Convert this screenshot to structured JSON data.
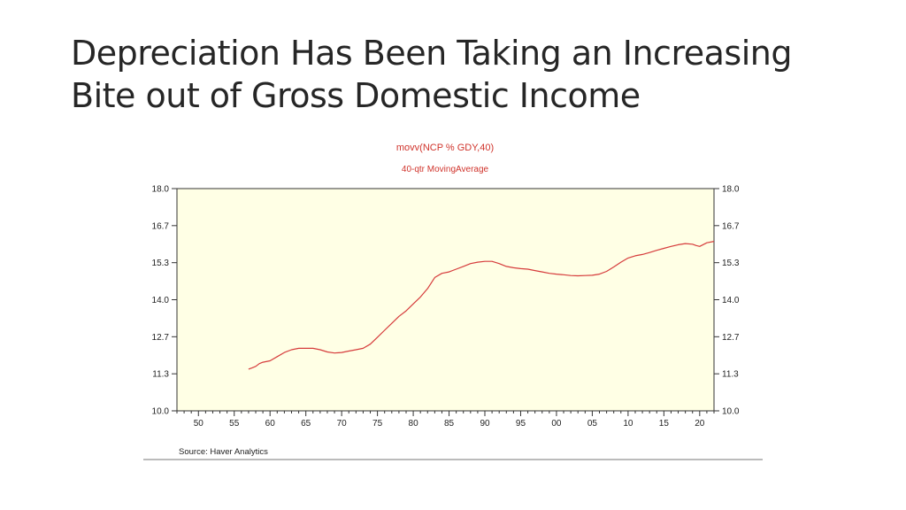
{
  "slide": {
    "title_line1": "Depreciation Has Been Taking an Increasing",
    "title_line2": "Bite out of Gross Domestic Income"
  },
  "colors": {
    "plot_background": "#ffffe5",
    "series_line": "#d63c3c",
    "chart_title": "#d0342c"
  },
  "chart_data": {
    "type": "line",
    "title": "movv(NCP % GDY,40)",
    "subtitle": "40-qtr MovingAverage",
    "source": "Source:  Haver Analytics",
    "ylim": [
      10.0,
      18.0
    ],
    "y_ticks": [
      "18.0",
      "16.7",
      "15.3",
      "14.0",
      "12.7",
      "11.3",
      "10.0"
    ],
    "y_tick_values": [
      18.0,
      16.667,
      15.333,
      14.0,
      12.667,
      11.333,
      10.0
    ],
    "xlim": [
      1947,
      2022
    ],
    "x_ticks": [
      "50",
      "55",
      "60",
      "65",
      "70",
      "75",
      "80",
      "85",
      "90",
      "95",
      "00",
      "05",
      "10",
      "15",
      "20"
    ],
    "x_tick_values": [
      1950,
      1955,
      1960,
      1965,
      1970,
      1975,
      1980,
      1985,
      1990,
      1995,
      2000,
      2005,
      2010,
      2015,
      2020
    ],
    "grid": false,
    "series": [
      {
        "x": [
          1957.0,
          1957.5,
          1958.0,
          1958.5,
          1959.0,
          1960.0,
          1961.0,
          1962.0,
          1963.0,
          1964.0,
          1965.0,
          1966.0,
          1967.0,
          1968.0,
          1969.0,
          1970.0,
          1971.0,
          1972.0,
          1973.0,
          1974.0,
          1975.0,
          1976.0,
          1977.0,
          1978.0,
          1979.0,
          1980.0,
          1981.0,
          1982.0,
          1983.0,
          1984.0,
          1985.0,
          1986.0,
          1987.0,
          1988.0,
          1989.0,
          1990.0,
          1991.0,
          1992.0,
          1993.0,
          1994.0,
          1995.0,
          1996.0,
          1997.0,
          1998.0,
          1999.0,
          2000.0,
          2001.0,
          2002.0,
          2003.0,
          2004.0,
          2005.0,
          2006.0,
          2007.0,
          2008.0,
          2009.0,
          2010.0,
          2011.0,
          2012.0,
          2013.0,
          2014.0,
          2015.0,
          2016.0,
          2017.0,
          2018.0,
          2019.0,
          2019.5,
          2020.0,
          2021.0,
          2022.0
        ],
        "values": [
          11.5,
          11.55,
          11.6,
          11.7,
          11.75,
          11.8,
          11.95,
          12.1,
          12.2,
          12.25,
          12.25,
          12.25,
          12.2,
          12.12,
          12.08,
          12.1,
          12.15,
          12.2,
          12.25,
          12.4,
          12.65,
          12.9,
          13.15,
          13.4,
          13.6,
          13.85,
          14.1,
          14.4,
          14.8,
          14.95,
          15.0,
          15.1,
          15.2,
          15.3,
          15.35,
          15.38,
          15.38,
          15.3,
          15.2,
          15.15,
          15.12,
          15.1,
          15.05,
          15.0,
          14.95,
          14.92,
          14.9,
          14.87,
          14.86,
          14.87,
          14.88,
          14.92,
          15.02,
          15.18,
          15.35,
          15.5,
          15.58,
          15.63,
          15.7,
          15.78,
          15.85,
          15.92,
          15.98,
          16.02,
          16.0,
          15.95,
          15.92,
          16.05,
          16.1
        ]
      }
    ]
  }
}
